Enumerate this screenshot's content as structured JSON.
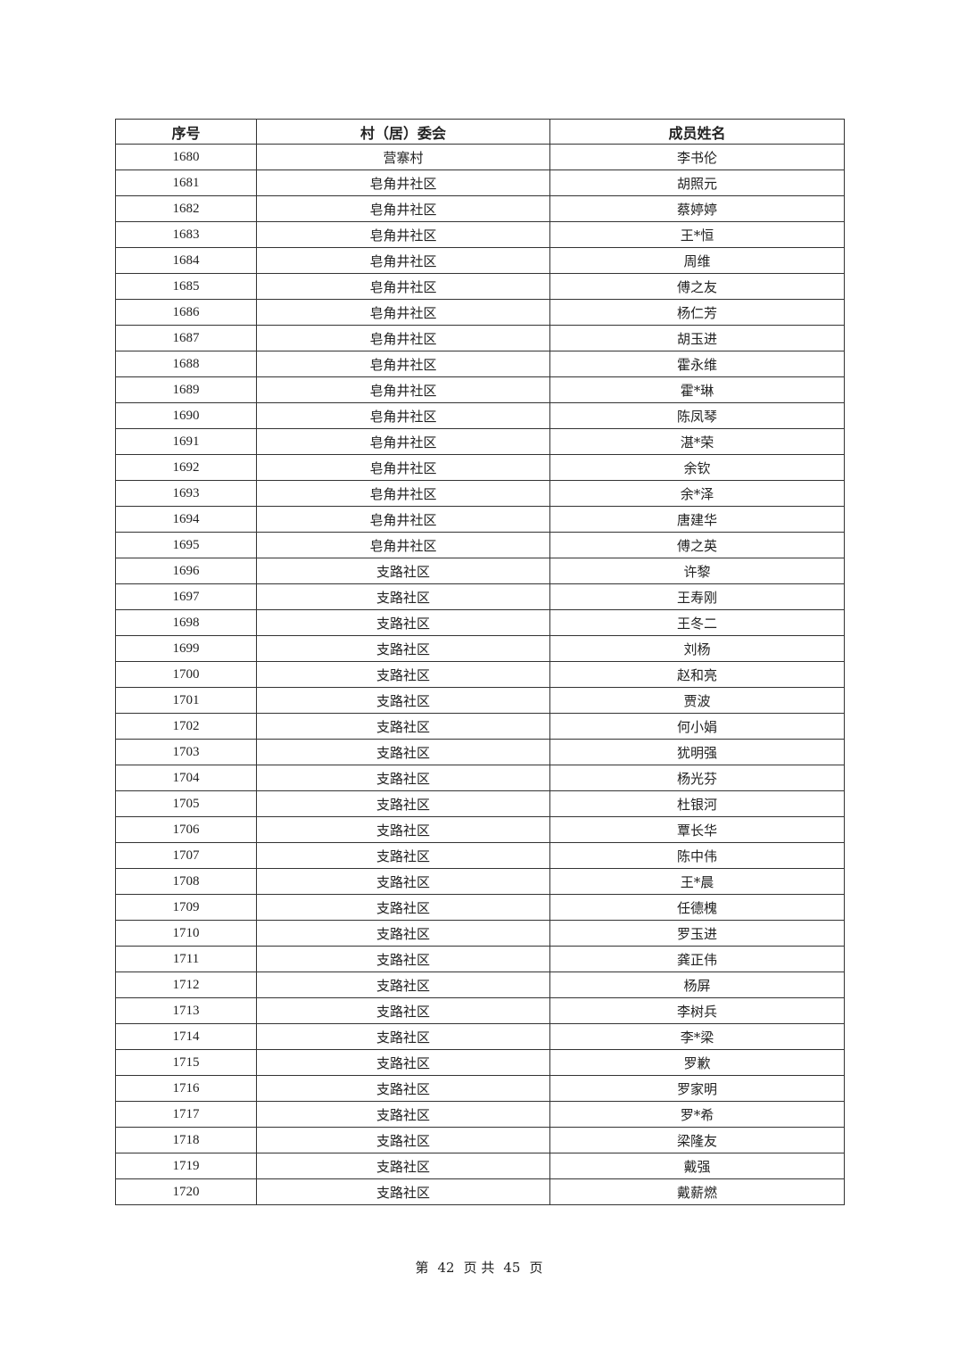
{
  "table": {
    "headers": [
      "序号",
      "村（居）委会",
      "成员姓名"
    ],
    "rows": [
      [
        "1680",
        "营寨村",
        "李书伦"
      ],
      [
        "1681",
        "皂角井社区",
        "胡照元"
      ],
      [
        "1682",
        "皂角井社区",
        "蔡婷婷"
      ],
      [
        "1683",
        "皂角井社区",
        "王*恒"
      ],
      [
        "1684",
        "皂角井社区",
        "周维"
      ],
      [
        "1685",
        "皂角井社区",
        "傅之友"
      ],
      [
        "1686",
        "皂角井社区",
        "杨仁芳"
      ],
      [
        "1687",
        "皂角井社区",
        "胡玉进"
      ],
      [
        "1688",
        "皂角井社区",
        "霍永维"
      ],
      [
        "1689",
        "皂角井社区",
        "霍*琳"
      ],
      [
        "1690",
        "皂角井社区",
        "陈凤琴"
      ],
      [
        "1691",
        "皂角井社区",
        "湛*荣"
      ],
      [
        "1692",
        "皂角井社区",
        "余钦"
      ],
      [
        "1693",
        "皂角井社区",
        "余*泽"
      ],
      [
        "1694",
        "皂角井社区",
        "唐建华"
      ],
      [
        "1695",
        "皂角井社区",
        "傅之英"
      ],
      [
        "1696",
        "支路社区",
        "许黎"
      ],
      [
        "1697",
        "支路社区",
        "王寿刚"
      ],
      [
        "1698",
        "支路社区",
        "王冬二"
      ],
      [
        "1699",
        "支路社区",
        "刘杨"
      ],
      [
        "1700",
        "支路社区",
        "赵和亮"
      ],
      [
        "1701",
        "支路社区",
        "贾波"
      ],
      [
        "1702",
        "支路社区",
        "何小娟"
      ],
      [
        "1703",
        "支路社区",
        "犹明强"
      ],
      [
        "1704",
        "支路社区",
        "杨光芬"
      ],
      [
        "1705",
        "支路社区",
        "杜银河"
      ],
      [
        "1706",
        "支路社区",
        "覃长华"
      ],
      [
        "1707",
        "支路社区",
        "陈中伟"
      ],
      [
        "1708",
        "支路社区",
        "王*晨"
      ],
      [
        "1709",
        "支路社区",
        "任德槐"
      ],
      [
        "1710",
        "支路社区",
        "罗玉进"
      ],
      [
        "1711",
        "支路社区",
        "龚正伟"
      ],
      [
        "1712",
        "支路社区",
        "杨屏"
      ],
      [
        "1713",
        "支路社区",
        "李树兵"
      ],
      [
        "1714",
        "支路社区",
        "李*梁"
      ],
      [
        "1715",
        "支路社区",
        "罗歉"
      ],
      [
        "1716",
        "支路社区",
        "罗家明"
      ],
      [
        "1717",
        "支路社区",
        "罗*希"
      ],
      [
        "1718",
        "支路社区",
        "梁隆友"
      ],
      [
        "1719",
        "支路社区",
        "戴强"
      ],
      [
        "1720",
        "支路社区",
        "戴薪燃"
      ]
    ]
  },
  "footer": {
    "prefix": "第",
    "page": "42",
    "mid": "页 共",
    "total": "45",
    "suffix": "页"
  }
}
